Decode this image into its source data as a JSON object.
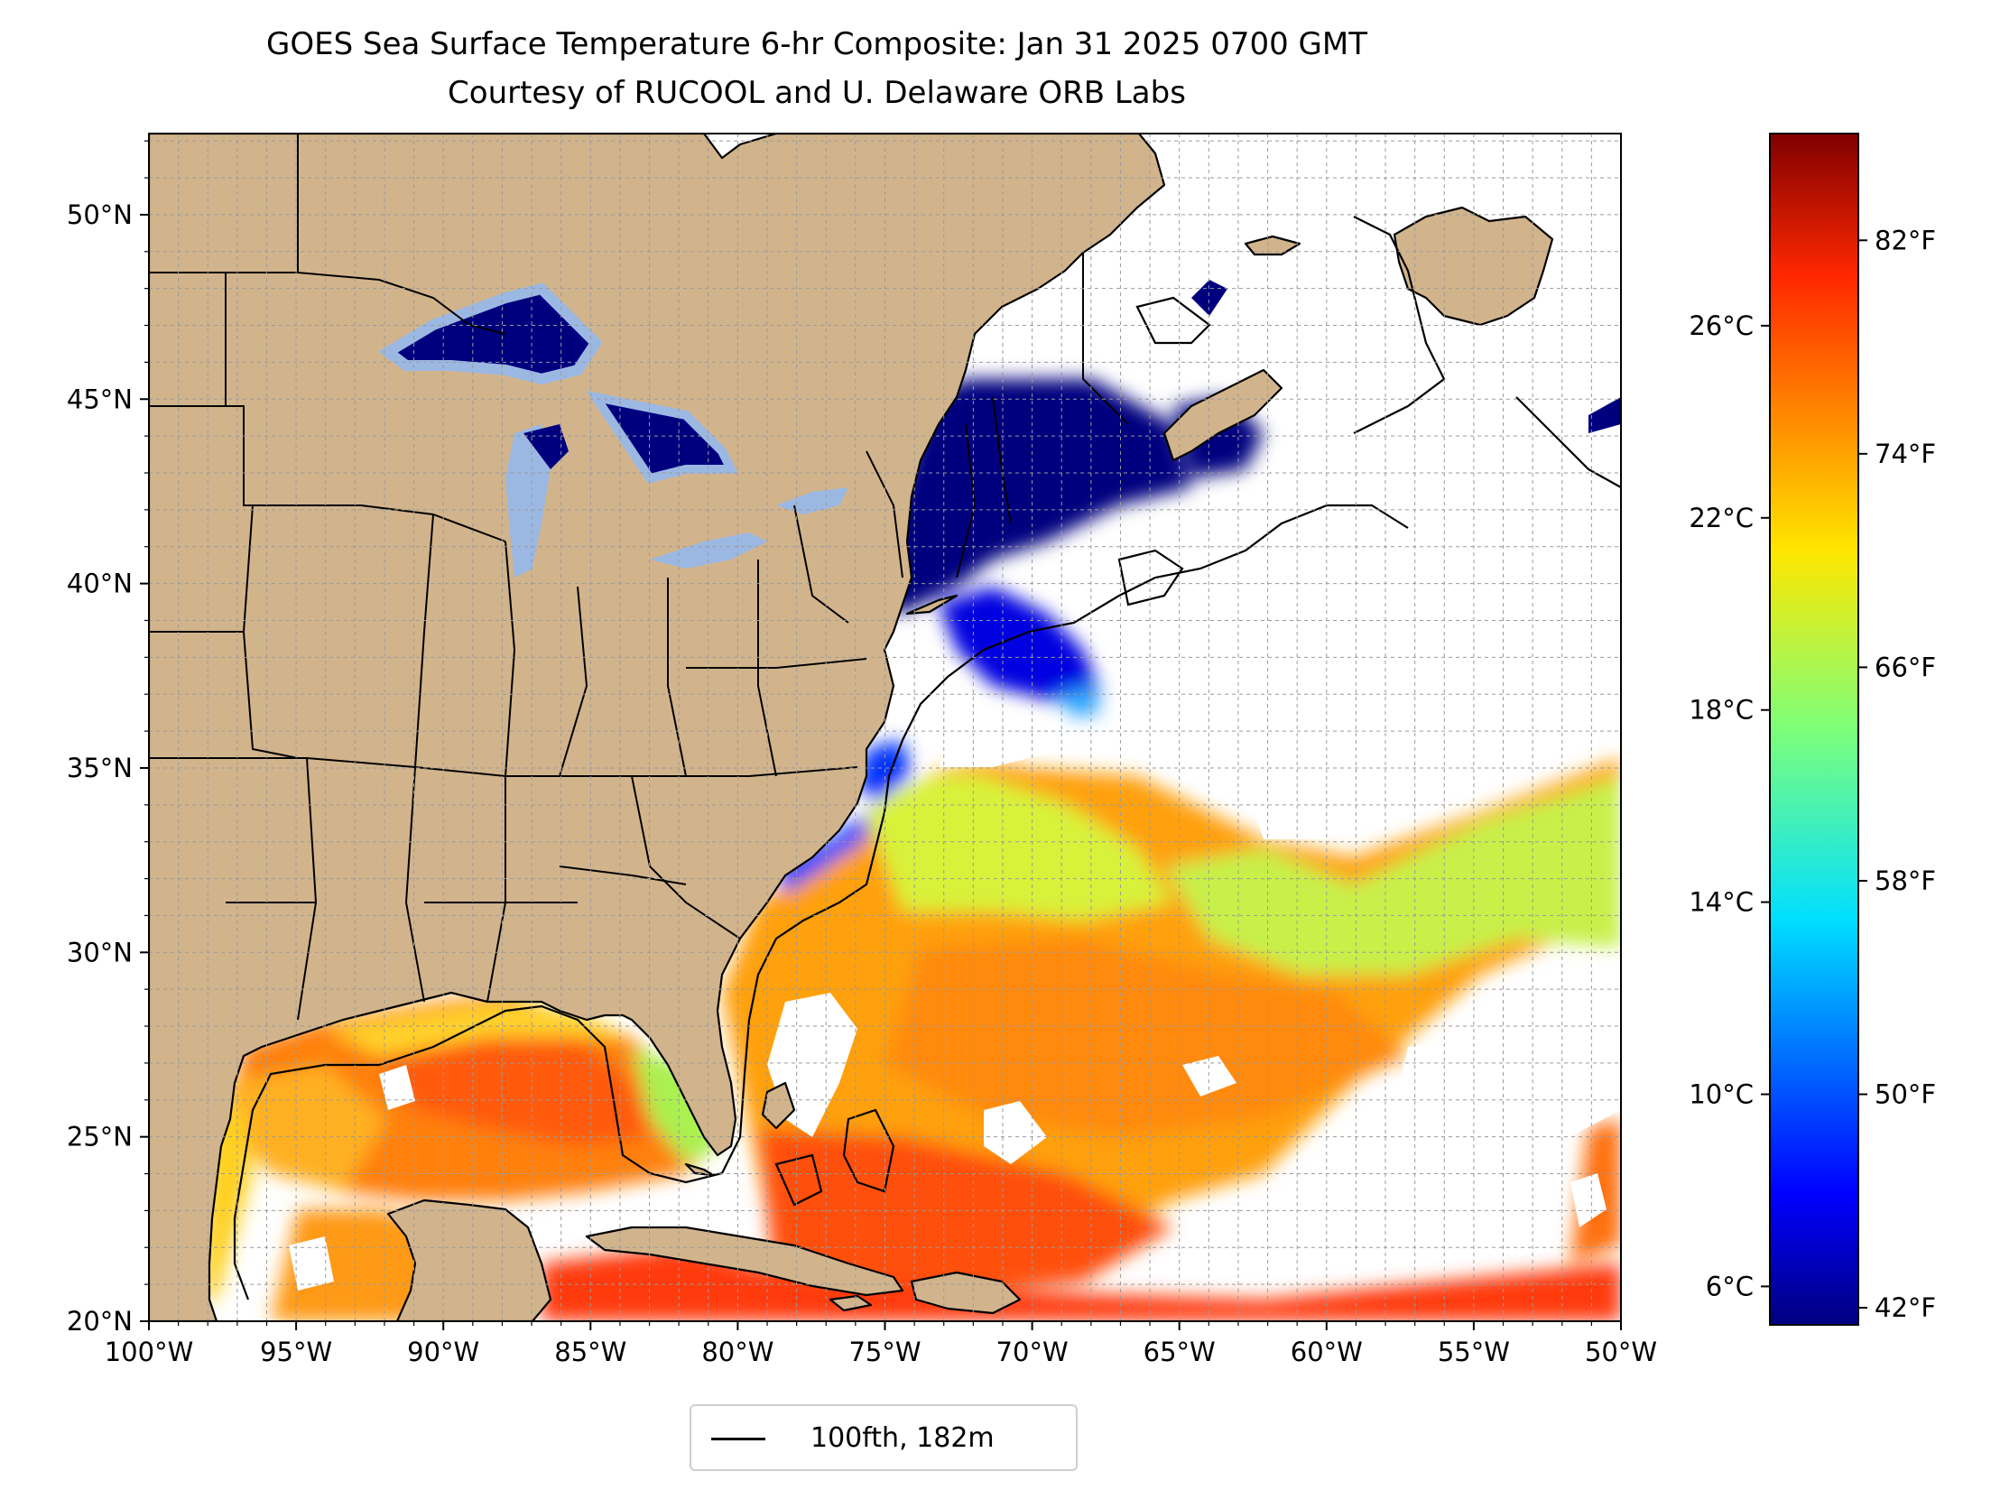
{
  "title": {
    "line1": "GOES Sea Surface Temperature 6-hr Composite: Jan 31 2025 0700 GMT",
    "line2": "Courtesy of RUCOOL and U. Delaware ORB Labs"
  },
  "map": {
    "lon_range": [
      -100,
      -50
    ],
    "lat_range": [
      20,
      52.2
    ],
    "lon_ticks": [
      {
        "value": -100,
        "label": "100°W"
      },
      {
        "value": -95,
        "label": "95°W"
      },
      {
        "value": -90,
        "label": "90°W"
      },
      {
        "value": -85,
        "label": "85°W"
      },
      {
        "value": -80,
        "label": "80°W"
      },
      {
        "value": -75,
        "label": "75°W"
      },
      {
        "value": -70,
        "label": "70°W"
      },
      {
        "value": -65,
        "label": "65°W"
      },
      {
        "value": -60,
        "label": "60°W"
      },
      {
        "value": -55,
        "label": "55°W"
      },
      {
        "value": -50,
        "label": "50°W"
      }
    ],
    "lat_ticks": [
      {
        "value": 20,
        "label": "20°N"
      },
      {
        "value": 25,
        "label": "25°N"
      },
      {
        "value": 30,
        "label": "30°N"
      },
      {
        "value": 35,
        "label": "35°N"
      },
      {
        "value": 40,
        "label": "40°N"
      },
      {
        "value": 45,
        "label": "45°N"
      },
      {
        "value": 50,
        "label": "50°N"
      }
    ],
    "grid": true,
    "land_color": "#d2b48c",
    "lake_color": "#9bb8e3",
    "no_data_color": "#ffffff"
  },
  "colorbar": {
    "palette": "jet",
    "celsius_ticks": [
      {
        "value": 6,
        "label": "6°C"
      },
      {
        "value": 10,
        "label": "10°C"
      },
      {
        "value": 14,
        "label": "14°C"
      },
      {
        "value": 18,
        "label": "18°C"
      },
      {
        "value": 22,
        "label": "22°C"
      },
      {
        "value": 26,
        "label": "26°C"
      }
    ],
    "fahrenheit_ticks": [
      {
        "value": 42,
        "label": "42°F"
      },
      {
        "value": 50,
        "label": "50°F"
      },
      {
        "value": 58,
        "label": "58°F"
      },
      {
        "value": 66,
        "label": "66°F"
      },
      {
        "value": 74,
        "label": "74°F"
      },
      {
        "value": 82,
        "label": "82°F"
      }
    ],
    "range_c": [
      5.2,
      30.0
    ]
  },
  "legend": {
    "label": "100fth, 182m",
    "line_color": "#000000"
  }
}
